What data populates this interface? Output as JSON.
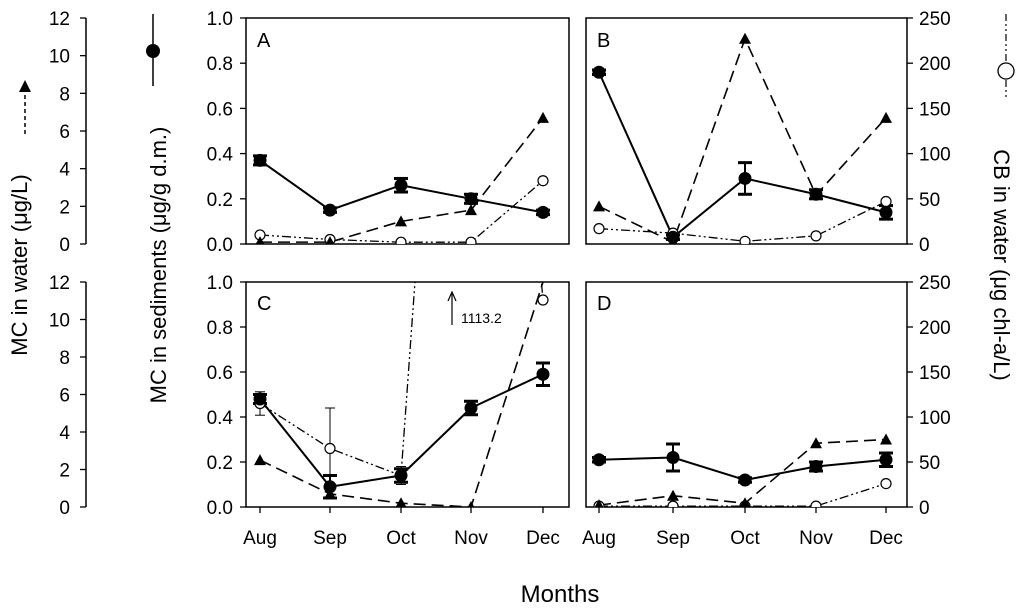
{
  "chart_data": {
    "type": "line",
    "xlabel": "Months",
    "categories": [
      "Aug",
      "Sep",
      "Oct",
      "Nov",
      "Dec"
    ],
    "axes": {
      "water": {
        "label": "MC in water (μg/L)",
        "ylim": [
          0,
          12
        ],
        "ticks": [
          "0",
          "2",
          "4",
          "6",
          "8",
          "10",
          "12"
        ],
        "ticks_bottom": [
          "0",
          "2",
          "4",
          "6",
          "8",
          "10",
          "12"
        ]
      },
      "sediments": {
        "label": "MC in sediments (μg/g d.m.)",
        "ylim": [
          0,
          1.0
        ],
        "ticks": [
          "0.0",
          "0.2",
          "0.4",
          "0.6",
          "0.8",
          "1.0"
        ]
      },
      "cb": {
        "label": "CB in water (μg chl-a/L)",
        "ylim": [
          0,
          250
        ],
        "ticks": [
          "0",
          "50",
          "100",
          "150",
          "200",
          "250"
        ]
      }
    },
    "legend": {
      "water": "MC in water (triangles, dashed line)",
      "sediments": "MC in sediments (filled circles, solid line)",
      "cb": "CB in water (open circles, dash-dot-dot line)"
    },
    "panels": [
      {
        "label": "A",
        "sediments": {
          "values": [
            0.37,
            0.15,
            0.26,
            0.2,
            0.14
          ],
          "errors": [
            0.02,
            0.01,
            0.03,
            0.02,
            0.01
          ]
        },
        "water": {
          "values": [
            0.1,
            0.1,
            1.2,
            1.8,
            6.7
          ]
        },
        "cb": {
          "values": [
            10,
            5,
            2,
            2,
            70
          ],
          "errors": [
            0,
            0,
            0,
            0,
            0
          ]
        }
      },
      {
        "label": "B",
        "sediments": {
          "values": [
            0.76,
            0.03,
            0.29,
            0.22,
            0.14
          ],
          "errors": [
            0.01,
            0.01,
            0.07,
            0.02,
            0.03
          ]
        },
        "water": {
          "values": [
            2.0,
            0.1,
            10.9,
            2.6,
            6.7
          ]
        },
        "cb": {
          "values": [
            17,
            12,
            3,
            9,
            47
          ],
          "errors": [
            0,
            0,
            0,
            0,
            0
          ]
        }
      },
      {
        "label": "C",
        "annotation": "1113.2",
        "sediments": {
          "values": [
            0.48,
            0.09,
            0.14,
            0.44,
            0.59
          ],
          "errors": [
            0.02,
            0.05,
            0.03,
            0.03,
            0.05
          ]
        },
        "water": {
          "values": [
            2.5,
            0.7,
            0.2,
            0.0,
            12.0
          ]
        },
        "cb": {
          "values": [
            115,
            65,
            35,
            1113.2,
            230
          ],
          "errors": [
            13,
            45,
            10,
            0,
            0
          ]
        }
      },
      {
        "label": "D",
        "sediments": {
          "values": [
            0.21,
            0.22,
            0.12,
            0.18,
            0.21
          ],
          "errors": [
            0.01,
            0.06,
            0.01,
            0.02,
            0.03
          ]
        },
        "water": {
          "values": [
            0.1,
            0.6,
            0.2,
            3.4,
            3.6
          ]
        },
        "cb": {
          "values": [
            1,
            1,
            1,
            1,
            26
          ],
          "errors": [
            0,
            0,
            0,
            0,
            0
          ]
        }
      }
    ]
  }
}
